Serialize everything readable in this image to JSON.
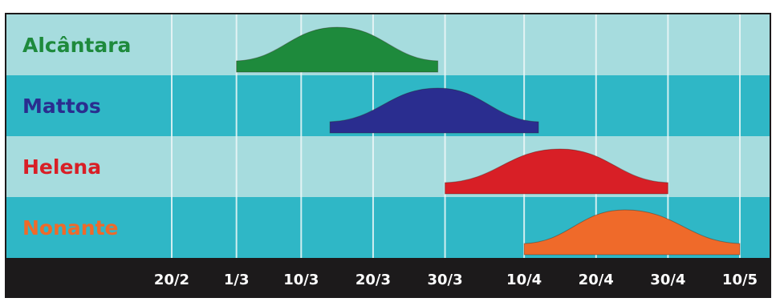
{
  "chart_data": {
    "type": "area",
    "title": "",
    "xlabel": "",
    "ylabel": "",
    "x_ticks": [
      "20/2",
      "1/3",
      "10/3",
      "20/3",
      "30/3",
      "10/4",
      "20/4",
      "30/4",
      "10/5"
    ],
    "grid": true,
    "legend": "none",
    "series": [
      {
        "name": "Alcântara",
        "color": "#1e8a3c",
        "start": "1/3",
        "peak": "15/3",
        "end": "29/3"
      },
      {
        "name": "Mattos",
        "color": "#2a2d8f",
        "start": "14/3",
        "peak": "29/3",
        "end": "12/4"
      },
      {
        "name": "Helena",
        "color": "#d81f26",
        "start": "30/3",
        "peak": "15/4",
        "end": "30/4"
      },
      {
        "name": "Nonante",
        "color": "#ef6a2a",
        "start": "10/4",
        "peak": "24/4",
        "end": "10/5"
      }
    ],
    "colors": {
      "band_light": "#a6dcde",
      "band_dark": "#2fb7c6",
      "axis_bar": "#1c1a1b",
      "tick_text": "#ffffff",
      "grid_line": "#eef8f8"
    }
  }
}
